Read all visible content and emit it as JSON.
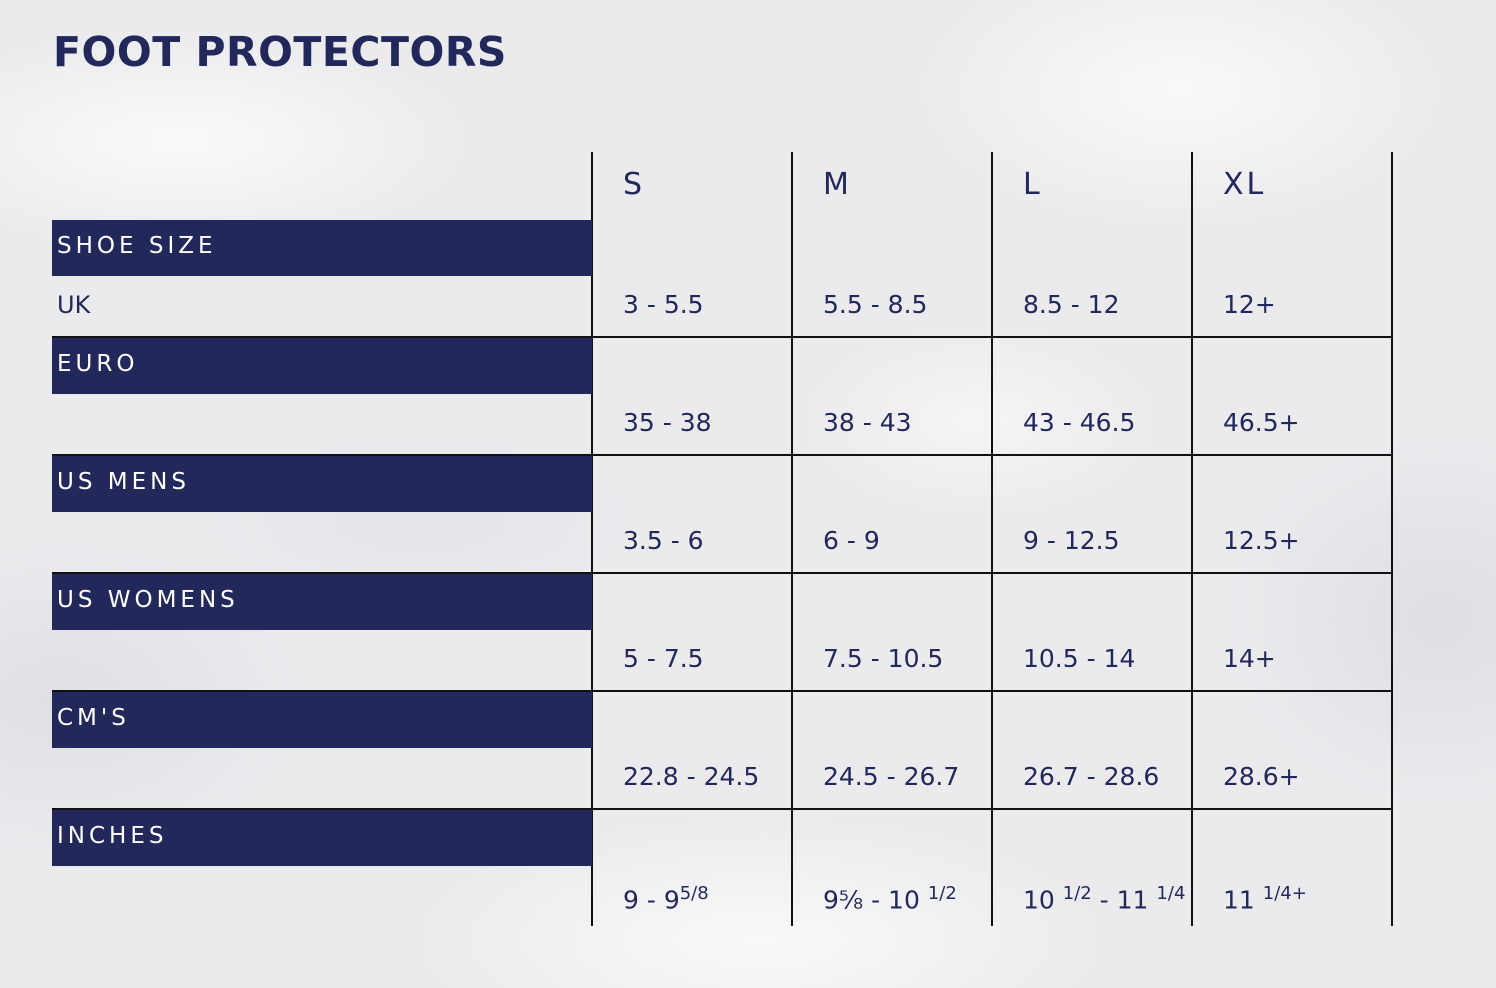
{
  "title": "FOOT PROTECTORS",
  "sizes": [
    "S",
    "M",
    "L",
    "XL"
  ],
  "rows": [
    {
      "label": "SHOE SIZE",
      "sublabel": "UK",
      "values": [
        "3 - 5.5",
        "5.5 - 8.5",
        "8.5 - 12",
        "12+"
      ]
    },
    {
      "label": "EURO",
      "sublabel": "",
      "values": [
        "35 - 38",
        "38 - 43",
        "43 - 46.5",
        "46.5+"
      ]
    },
    {
      "label": "US MENS",
      "sublabel": "",
      "values": [
        "3.5 - 6",
        "6 - 9",
        "9 - 12.5",
        "12.5+"
      ]
    },
    {
      "label": "US WOMENS",
      "sublabel": "",
      "values": [
        "5 - 7.5",
        "7.5 - 10.5",
        "10.5 - 14",
        "14+"
      ]
    },
    {
      "label": "CM'S",
      "sublabel": "",
      "values": [
        "22.8 - 24.5",
        "24.5 - 26.7",
        "26.7 - 28.6",
        "28.6+"
      ]
    }
  ],
  "inches": {
    "label": "INCHES",
    "values": [
      {
        "pre": "9 - 9",
        "sup": "5/8",
        "mid": "",
        "sup2": ""
      },
      {
        "pre": "9⅝ - 10 ",
        "sup": "1/2",
        "mid": "",
        "sup2": ""
      },
      {
        "pre": "10 ",
        "sup": "1/2",
        "mid": " - 11 ",
        "sup2": "1/4"
      },
      {
        "pre": "11 ",
        "sup": "1/4+",
        "mid": "",
        "sup2": ""
      }
    ]
  },
  "colors": {
    "navy": "#22285a",
    "grid": "#111111",
    "background": "#ebebee"
  }
}
